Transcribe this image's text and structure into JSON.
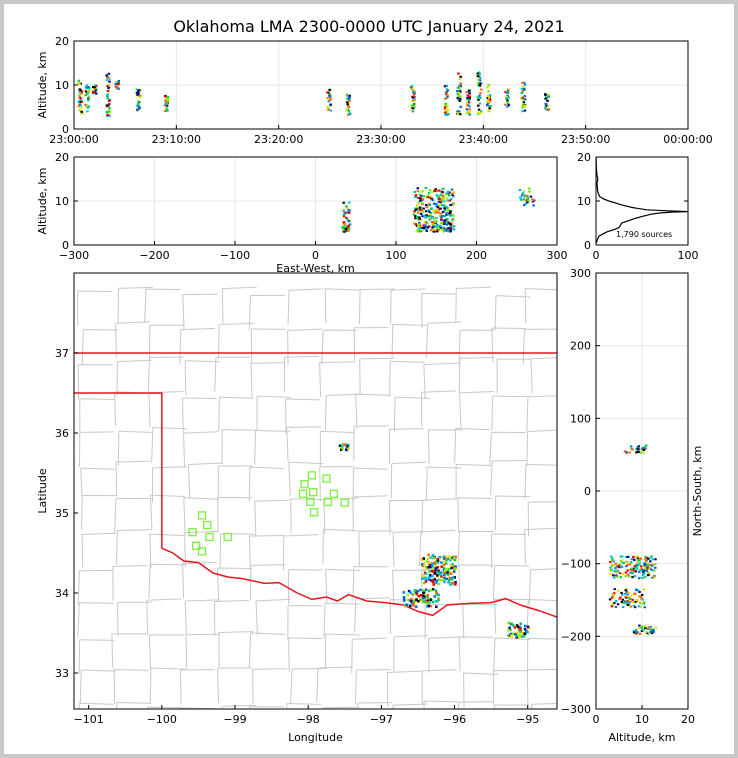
{
  "title": "Oklahoma LMA 2300-0000 UTC January 24, 2021",
  "colors": {
    "state_border": "#e8141e",
    "county_lines": "#c8c8c8",
    "station_marker": "#7cf03c",
    "frame_background": "#c8c8c8"
  },
  "chart_data": [
    {
      "id": "altitude-time",
      "type": "scatter",
      "ylabel": "Altitude, km",
      "ylim": [
        0,
        20
      ],
      "yticks": [
        0,
        10,
        20
      ],
      "xlim_minutes": [
        0,
        60
      ],
      "xtick_labels": [
        "23:00:00",
        "23:10:00",
        "23:20:00",
        "23:30:00",
        "23:40:00",
        "23:50:00",
        "00:00:00"
      ],
      "clusters": [
        {
          "minutes": 0.6,
          "alt_range": [
            3,
            11
          ]
        },
        {
          "minutes": 1.3,
          "alt_range": [
            4,
            10
          ]
        },
        {
          "minutes": 2.0,
          "alt_range": [
            8,
            10
          ]
        },
        {
          "minutes": 3.3,
          "alt_range": [
            3,
            13
          ]
        },
        {
          "minutes": 4.2,
          "alt_range": [
            9,
            11
          ]
        },
        {
          "minutes": 6.3,
          "alt_range": [
            4,
            9
          ]
        },
        {
          "minutes": 9.0,
          "alt_range": [
            4,
            8
          ]
        },
        {
          "minutes": 24.9,
          "alt_range": [
            4,
            9
          ]
        },
        {
          "minutes": 26.8,
          "alt_range": [
            3,
            8
          ]
        },
        {
          "minutes": 33.1,
          "alt_range": [
            4,
            10
          ]
        },
        {
          "minutes": 36.4,
          "alt_range": [
            3,
            10
          ]
        },
        {
          "minutes": 37.6,
          "alt_range": [
            3,
            13
          ]
        },
        {
          "minutes": 38.5,
          "alt_range": [
            3,
            9
          ]
        },
        {
          "minutes": 39.6,
          "alt_range": [
            3,
            13
          ]
        },
        {
          "minutes": 40.5,
          "alt_range": [
            4,
            10
          ]
        },
        {
          "minutes": 42.3,
          "alt_range": [
            5,
            9
          ]
        },
        {
          "minutes": 43.9,
          "alt_range": [
            4,
            11
          ]
        },
        {
          "minutes": 46.2,
          "alt_range": [
            4,
            8
          ]
        }
      ]
    },
    {
      "id": "altitude-eastwest",
      "type": "scatter",
      "xlabel": "East-West, km",
      "ylabel": "Altitude, km",
      "xlim": [
        -300,
        300
      ],
      "ylim": [
        0,
        20
      ],
      "xticks": [
        -300,
        -200,
        -100,
        0,
        100,
        200,
        300
      ],
      "yticks": [
        0,
        10,
        20
      ],
      "clusters": [
        {
          "x_range": [
            33,
            43
          ],
          "alt_range": [
            3,
            10
          ],
          "n": 45
        },
        {
          "x_range": [
            122,
            172
          ],
          "alt_range": [
            3,
            13
          ],
          "n": 300
        },
        {
          "x_range": [
            253,
            272
          ],
          "alt_range": [
            9,
            13
          ],
          "n": 30
        }
      ]
    },
    {
      "id": "altitude-histogram",
      "type": "line",
      "xlim": [
        0,
        100
      ],
      "ylim": [
        0,
        20
      ],
      "xticks": [
        0,
        100
      ],
      "yticks": [
        0,
        10,
        20
      ],
      "annotation": "1,790 sources",
      "profile": [
        [
          0.2,
          0.5
        ],
        [
          3,
          2
        ],
        [
          12,
          3
        ],
        [
          20,
          3.5
        ],
        [
          25,
          4
        ],
        [
          28,
          5
        ],
        [
          35,
          5.5
        ],
        [
          42,
          6
        ],
        [
          50,
          6.5
        ],
        [
          60,
          7
        ],
        [
          70,
          7.3
        ],
        [
          85,
          7.5
        ],
        [
          100,
          7.6
        ],
        [
          75,
          7.8
        ],
        [
          55,
          8
        ],
        [
          40,
          8.5
        ],
        [
          30,
          9
        ],
        [
          22,
          9.5
        ],
        [
          14,
          10
        ],
        [
          8,
          10.5
        ],
        [
          4,
          11
        ],
        [
          2,
          12
        ],
        [
          1.5,
          13
        ],
        [
          1,
          14
        ],
        [
          2,
          15
        ],
        [
          1,
          16
        ],
        [
          0.5,
          17
        ],
        [
          0.3,
          18
        ],
        [
          0.2,
          19
        ],
        [
          0.1,
          20
        ]
      ]
    },
    {
      "id": "plan-view",
      "type": "scatter",
      "xlabel": "Longitude",
      "ylabel": "Latitude",
      "xlim": [
        -101.2,
        -94.6
      ],
      "ylim": [
        32.55,
        38.0
      ],
      "xticks": [
        -101,
        -100,
        -99,
        -98,
        -97,
        -96,
        -95
      ],
      "yticks": [
        33,
        34,
        35,
        36,
        37
      ],
      "stations": [
        [
          -97.95,
          35.47
        ],
        [
          -97.75,
          35.43
        ],
        [
          -98.05,
          35.36
        ],
        [
          -97.93,
          35.26
        ],
        [
          -97.65,
          35.24
        ],
        [
          -98.07,
          35.24
        ],
        [
          -97.97,
          35.14
        ],
        [
          -97.73,
          35.14
        ],
        [
          -97.5,
          35.13
        ],
        [
          -97.92,
          35.01
        ],
        [
          -99.45,
          34.97
        ],
        [
          -99.38,
          34.85
        ],
        [
          -99.58,
          34.76
        ],
        [
          -99.35,
          34.7
        ],
        [
          -99.1,
          34.7
        ],
        [
          -99.53,
          34.59
        ],
        [
          -99.45,
          34.52
        ]
      ],
      "clusters": [
        {
          "lon_range": [
            -97.57,
            -97.45
          ],
          "lat_range": [
            35.78,
            35.86
          ],
          "n": 16
        },
        {
          "lon_range": [
            -96.45,
            -95.98
          ],
          "lat_range": [
            34.1,
            34.48
          ],
          "n": 160
        },
        {
          "lon_range": [
            -96.7,
            -96.22
          ],
          "lat_range": [
            33.83,
            34.05
          ],
          "n": 90
        },
        {
          "lon_range": [
            -95.28,
            -94.98
          ],
          "lat_range": [
            33.45,
            33.63
          ],
          "n": 45
        }
      ]
    },
    {
      "id": "northsouth-altitude",
      "type": "scatter",
      "xlabel": "Altitude, km",
      "ylabel": "North-South, km",
      "xlim": [
        0,
        20
      ],
      "ylim": [
        -300,
        300
      ],
      "xticks": [
        0,
        10,
        20
      ],
      "yticks": [
        -300,
        -200,
        -100,
        0,
        100,
        200,
        300
      ],
      "clusters": [
        {
          "alt_range": [
            6,
            11
          ],
          "y_range": [
            52,
            63
          ],
          "n": 30
        },
        {
          "alt_range": [
            3,
            13
          ],
          "y_range": [
            -120,
            -90
          ],
          "n": 150
        },
        {
          "alt_range": [
            3,
            11
          ],
          "y_range": [
            -160,
            -135
          ],
          "n": 80
        },
        {
          "alt_range": [
            8,
            13
          ],
          "y_range": [
            -198,
            -185
          ],
          "n": 35
        }
      ]
    }
  ]
}
